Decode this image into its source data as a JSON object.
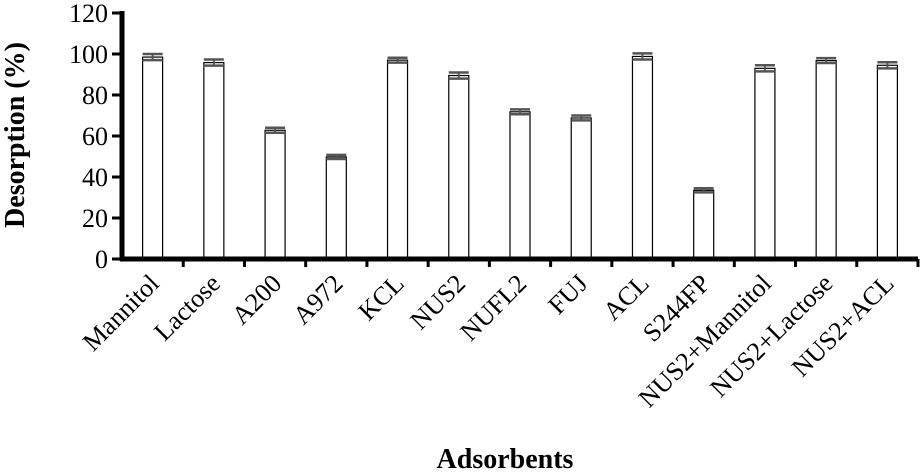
{
  "chart_data": {
    "type": "bar",
    "xlabel": "Adsorbents",
    "ylabel": "Desorption (%)",
    "ylim": [
      0,
      120
    ],
    "yticks": [
      "0",
      "20",
      "40",
      "60",
      "80",
      "100",
      "120"
    ],
    "categories": [
      "Mannitol",
      "Lactose",
      "A200",
      "A972",
      "KCL",
      "NUS2",
      "NUFL2",
      "FUJ",
      "ACL",
      "S244FP",
      "NUS2+Mannitol",
      "NUS2+Lactose",
      "NUS2+ACL"
    ],
    "values": [
      98.5,
      95.8,
      62.8,
      49.8,
      97.0,
      89.5,
      71.8,
      68.8,
      98.8,
      33.5,
      93.0,
      96.8,
      94.5
    ],
    "errors": [
      1.5,
      1.5,
      1.2,
      1.0,
      1.2,
      1.5,
      1.2,
      1.2,
      1.5,
      1.0,
      1.5,
      1.2,
      1.5
    ],
    "grid": false,
    "bar_fill": "#ffffff",
    "bar_stroke": "#000000",
    "error_color": "#555555"
  }
}
